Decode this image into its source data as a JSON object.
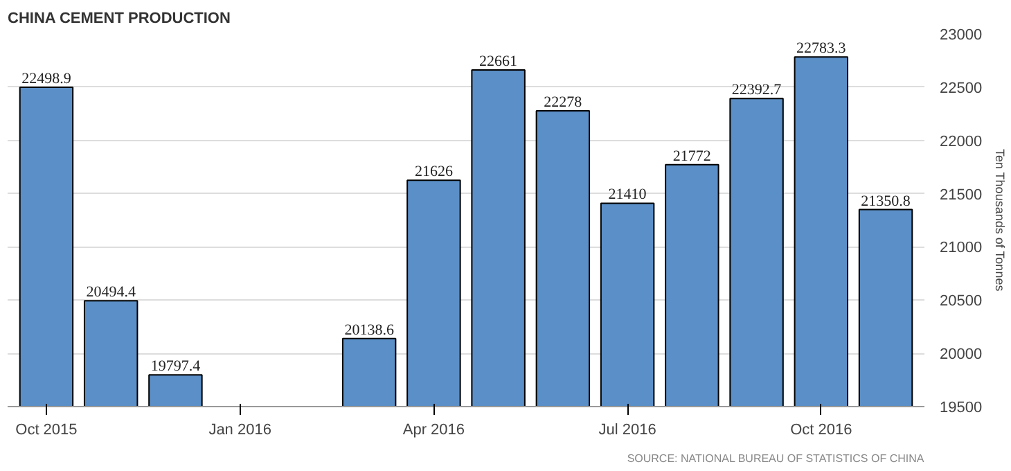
{
  "chart_data": {
    "type": "bar",
    "title": "CHINA CEMENT PRODUCTION",
    "ylabel": "Ten Thousands of Tonnes",
    "categories": [
      "Oct 2015",
      null,
      null,
      "Jan 2016",
      null,
      null,
      "Apr 2016",
      null,
      null,
      "Jul 2016",
      null,
      null,
      "Oct 2016",
      null
    ],
    "values": [
      22498.9,
      20494.4,
      19797.4,
      null,
      null,
      20138.6,
      21626,
      22661,
      22278,
      21410,
      21772,
      22392.7,
      22783.3,
      21350.8
    ],
    "color": "#5b8fc7",
    "ylim": [
      19500,
      23000
    ],
    "yticks": [
      19500,
      20000,
      20500,
      21000,
      21500,
      22000,
      22500,
      23000
    ],
    "grid": "y",
    "data_labels": true,
    "annotations": [
      "SOURCE: NATIONAL BUREAU OF STATISTICS OF CHINA"
    ]
  }
}
